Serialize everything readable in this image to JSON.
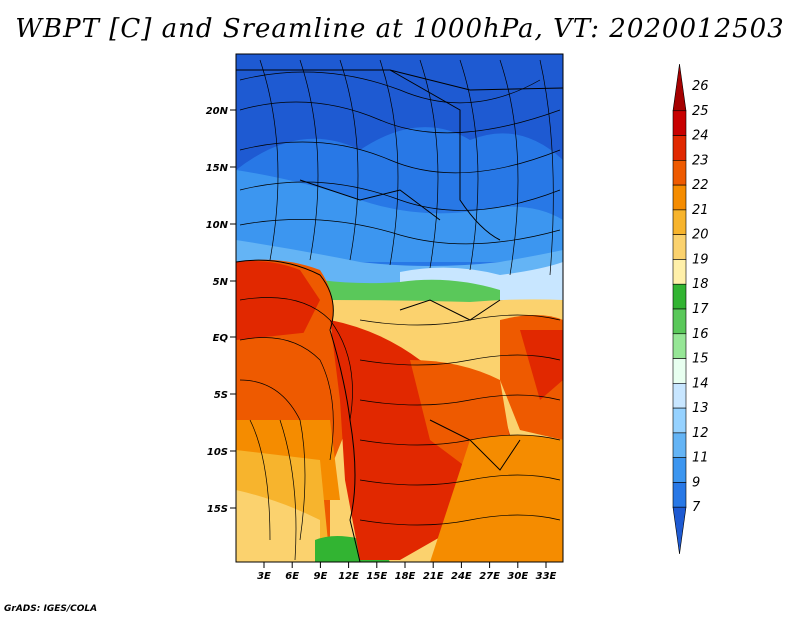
{
  "title": "WBPT [C] and Sreamline at 1000hPa, VT: 2020012503",
  "credit": "GrADS: IGES/COLA",
  "map": {
    "lat_labels": [
      "20N",
      "15N",
      "10N",
      "5N",
      "EQ",
      "5S",
      "10S",
      "15S"
    ],
    "lon_labels": [
      "3E",
      "6E",
      "9E",
      "12E",
      "15E",
      "18E",
      "21E",
      "24E",
      "27E",
      "30E",
      "33E"
    ]
  },
  "colorbar": {
    "labels": [
      "26",
      "25",
      "24",
      "23",
      "22",
      "21",
      "20",
      "19",
      "18",
      "17",
      "16",
      "15",
      "14",
      "13",
      "12",
      "11",
      "9",
      "7"
    ],
    "colors": [
      "#a50000",
      "#c80000",
      "#e12800",
      "#ee5a00",
      "#f58c00",
      "#f7b42d",
      "#fbd26e",
      "#fff0aa",
      "#32b432",
      "#5ac85a",
      "#96e696",
      "#e8fff0",
      "#c8e6ff",
      "#96d2ff",
      "#64b4f5",
      "#3c96f0",
      "#2878e6",
      "#1e5ad2"
    ]
  }
}
